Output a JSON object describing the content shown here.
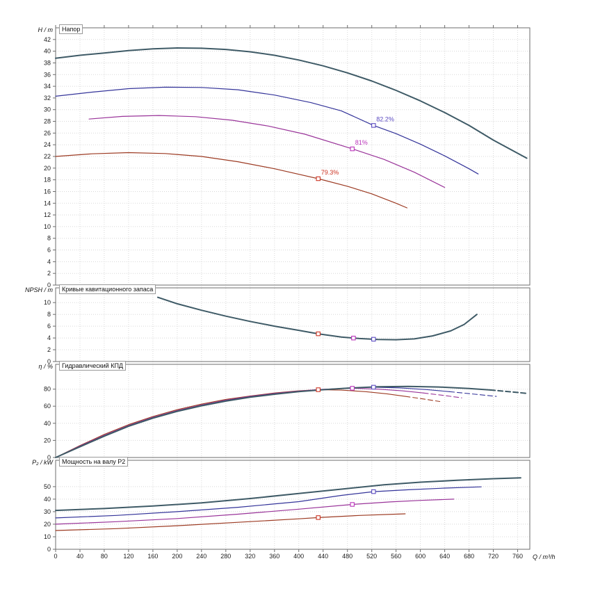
{
  "window": {
    "background": "#ffffff"
  },
  "axis_x": {
    "label": "Q / m³/h",
    "min": 0,
    "max": 780,
    "tick_step": 40,
    "tick_max": 760
  },
  "colors": {
    "grid": "#d8d8d8",
    "frame": "#6e6e6e",
    "tick_text": "#1a1a1a",
    "full": "#3e5a66",
    "trim1": "#333399",
    "trim2": "#993399",
    "trim3": "#9c3a22",
    "duty1": "#5a49c0",
    "duty2": "#bb33bb",
    "duty3": "#cc3322"
  },
  "chart_data": [
    {
      "type": "line",
      "title": "Напор",
      "ylabel": "H / m",
      "xlabel": "Q / m³/h",
      "ylim": [
        0,
        44
      ],
      "yticks": [
        0,
        2,
        4,
        6,
        8,
        10,
        12,
        14,
        16,
        18,
        20,
        22,
        24,
        26,
        28,
        30,
        32,
        34,
        36,
        38,
        40,
        42
      ],
      "series": [
        {
          "name": "head-full",
          "color": "full",
          "width": 2,
          "points": [
            [
              0,
              38.8
            ],
            [
              40,
              39.3
            ],
            [
              80,
              39.7
            ],
            [
              120,
              40.1
            ],
            [
              160,
              40.4
            ],
            [
              200,
              40.55
            ],
            [
              240,
              40.5
            ],
            [
              280,
              40.3
            ],
            [
              320,
              39.9
            ],
            [
              360,
              39.3
            ],
            [
              400,
              38.5
            ],
            [
              440,
              37.5
            ],
            [
              480,
              36.3
            ],
            [
              520,
              34.9
            ],
            [
              560,
              33.3
            ],
            [
              600,
              31.5
            ],
            [
              640,
              29.5
            ],
            [
              680,
              27.3
            ],
            [
              720,
              24.8
            ],
            [
              775,
              21.7
            ]
          ]
        },
        {
          "name": "head-trim1",
          "color": "trim1",
          "width": 1.2,
          "points": [
            [
              0,
              32.3
            ],
            [
              60,
              33.0
            ],
            [
              120,
              33.6
            ],
            [
              180,
              33.85
            ],
            [
              240,
              33.8
            ],
            [
              300,
              33.4
            ],
            [
              360,
              32.5
            ],
            [
              420,
              31.2
            ],
            [
              470,
              29.8
            ],
            [
              523,
              27.3
            ],
            [
              560,
              25.9
            ],
            [
              600,
              24.1
            ],
            [
              640,
              22.1
            ],
            [
              680,
              19.9
            ],
            [
              695,
              19.0
            ]
          ]
        },
        {
          "name": "head-trim2",
          "color": "trim2",
          "width": 1.2,
          "points": [
            [
              55,
              28.4
            ],
            [
              110,
              28.85
            ],
            [
              170,
              29.0
            ],
            [
              230,
              28.8
            ],
            [
              290,
              28.2
            ],
            [
              350,
              27.2
            ],
            [
              410,
              25.8
            ],
            [
              488,
              23.3
            ],
            [
              540,
              21.5
            ],
            [
              590,
              19.3
            ],
            [
              640,
              16.7
            ]
          ]
        },
        {
          "name": "head-trim3",
          "color": "trim3",
          "width": 1.2,
          "points": [
            [
              0,
              22.0
            ],
            [
              60,
              22.45
            ],
            [
              120,
              22.65
            ],
            [
              180,
              22.5
            ],
            [
              240,
              22.0
            ],
            [
              300,
              21.1
            ],
            [
              360,
              19.9
            ],
            [
              432,
              18.2
            ],
            [
              480,
              16.9
            ],
            [
              520,
              15.6
            ],
            [
              560,
              14.0
            ],
            [
              578,
              13.2
            ]
          ]
        }
      ],
      "markers": [
        {
          "x": 432,
          "y": 18.2,
          "color": "duty3",
          "label": "79.3%"
        },
        {
          "x": 488,
          "y": 23.3,
          "color": "duty2",
          "label": "81%"
        },
        {
          "x": 523,
          "y": 27.3,
          "color": "duty1",
          "label": "82.2%"
        }
      ]
    },
    {
      "type": "line",
      "title": "Кривые кавитационного запаса",
      "ylabel": "NPSH / m",
      "ylim": [
        0,
        12.5
      ],
      "yticks": [
        0,
        2,
        4,
        6,
        8,
        10
      ],
      "series": [
        {
          "name": "npsh",
          "color": "full",
          "width": 2,
          "points": [
            [
              168,
              10.9
            ],
            [
              200,
              9.8
            ],
            [
              240,
              8.7
            ],
            [
              280,
              7.7
            ],
            [
              320,
              6.8
            ],
            [
              360,
              6.0
            ],
            [
              400,
              5.3
            ],
            [
              432,
              4.7
            ],
            [
              470,
              4.15
            ],
            [
              500,
              3.9
            ],
            [
              530,
              3.75
            ],
            [
              560,
              3.7
            ],
            [
              590,
              3.85
            ],
            [
              620,
              4.35
            ],
            [
              650,
              5.2
            ],
            [
              672,
              6.3
            ],
            [
              693,
              8.0
            ]
          ]
        }
      ],
      "markers": [
        {
          "x": 432,
          "y": 4.7,
          "color": "duty3"
        },
        {
          "x": 490,
          "y": 3.98,
          "color": "duty2"
        },
        {
          "x": 523,
          "y": 3.78,
          "color": "duty1"
        }
      ]
    },
    {
      "type": "line",
      "title": "Гидравлический КПД",
      "ylabel": "η / %",
      "ylim": [
        0,
        109
      ],
      "yticks": [
        0,
        20,
        40,
        60,
        80
      ],
      "series": [
        {
          "name": "eff-trim3",
          "color": "trim3",
          "width": 1.1,
          "points": [
            [
              0,
              0
            ],
            [
              40,
              14
            ],
            [
              80,
              27
            ],
            [
              120,
              38.5
            ],
            [
              160,
              48
            ],
            [
              200,
              56
            ],
            [
              240,
              62.5
            ],
            [
              280,
              68
            ],
            [
              320,
              72
            ],
            [
              360,
              75.5
            ],
            [
              400,
              78
            ],
            [
              432,
              79.3
            ],
            [
              470,
              78.8
            ],
            [
              510,
              77
            ],
            [
              545,
              74.5
            ],
            [
              575,
              71.5
            ]
          ]
        },
        {
          "name": "eff-trim3-ext",
          "color": "trim3",
          "width": 1.1,
          "dash": true,
          "points": [
            [
              575,
              71.5
            ],
            [
              605,
              68.5
            ],
            [
              632,
              65.5
            ]
          ]
        },
        {
          "name": "eff-trim2",
          "color": "trim2",
          "width": 1.1,
          "points": [
            [
              0,
              0
            ],
            [
              40,
              13.5
            ],
            [
              80,
              26
            ],
            [
              120,
              37.5
            ],
            [
              160,
              47
            ],
            [
              200,
              55
            ],
            [
              240,
              61.5
            ],
            [
              280,
              67
            ],
            [
              320,
              71.5
            ],
            [
              360,
              75
            ],
            [
              400,
              77.8
            ],
            [
              440,
              79.9
            ],
            [
              488,
              81
            ],
            [
              530,
              80
            ],
            [
              570,
              78
            ],
            [
              605,
              75.5
            ]
          ]
        },
        {
          "name": "eff-trim2-ext",
          "color": "trim2",
          "width": 1.1,
          "dash": true,
          "points": [
            [
              605,
              75.5
            ],
            [
              640,
              72.5
            ],
            [
              668,
              69.8
            ]
          ]
        },
        {
          "name": "eff-trim1",
          "color": "trim1",
          "width": 1.1,
          "points": [
            [
              0,
              0
            ],
            [
              40,
              13
            ],
            [
              80,
              25.5
            ],
            [
              120,
              37
            ],
            [
              160,
              46.5
            ],
            [
              200,
              54.5
            ],
            [
              240,
              61
            ],
            [
              280,
              66.5
            ],
            [
              320,
              71
            ],
            [
              360,
              74.5
            ],
            [
              400,
              77.3
            ],
            [
              440,
              79.5
            ],
            [
              480,
              81.3
            ],
            [
              523,
              82.2
            ],
            [
              565,
              81.5
            ],
            [
              610,
              79.5
            ],
            [
              648,
              77
            ]
          ]
        },
        {
          "name": "eff-trim1-ext",
          "color": "trim1",
          "width": 1.1,
          "dash": true,
          "points": [
            [
              648,
              77
            ],
            [
              690,
              74
            ],
            [
              725,
              71.5
            ]
          ]
        },
        {
          "name": "eff-full",
          "color": "full",
          "width": 2,
          "points": [
            [
              0,
              0
            ],
            [
              40,
              12.5
            ],
            [
              80,
              25
            ],
            [
              120,
              36.5
            ],
            [
              160,
              46
            ],
            [
              200,
              54
            ],
            [
              240,
              60.5
            ],
            [
              280,
              66
            ],
            [
              320,
              70.5
            ],
            [
              360,
              74
            ],
            [
              400,
              77
            ],
            [
              440,
              79.3
            ],
            [
              480,
              81.2
            ],
            [
              530,
              82.7
            ],
            [
              580,
              83.2
            ],
            [
              630,
              82.5
            ],
            [
              680,
              80.8
            ],
            [
              715,
              79
            ]
          ]
        },
        {
          "name": "eff-full-ext",
          "color": "full",
          "width": 2,
          "dash": true,
          "points": [
            [
              715,
              79
            ],
            [
              750,
              76.8
            ],
            [
              775,
              75
            ]
          ]
        }
      ],
      "markers": [
        {
          "x": 432,
          "y": 79.3,
          "color": "duty3"
        },
        {
          "x": 488,
          "y": 81,
          "color": "duty2"
        },
        {
          "x": 523,
          "y": 82.2,
          "color": "duty1"
        }
      ]
    },
    {
      "type": "line",
      "title": "Мощность на валу P2",
      "ylabel": "P₂ / kW",
      "ylim": [
        0,
        71
      ],
      "yticks": [
        0,
        10,
        20,
        30,
        40,
        50
      ],
      "series": [
        {
          "name": "p2-full",
          "color": "full",
          "width": 2,
          "points": [
            [
              0,
              31
            ],
            [
              80,
              32.5
            ],
            [
              160,
              34.5
            ],
            [
              240,
              37
            ],
            [
              320,
              40.5
            ],
            [
              400,
              44.5
            ],
            [
              480,
              48.5
            ],
            [
              540,
              51.5
            ],
            [
              600,
              53.5
            ],
            [
              660,
              55
            ],
            [
              720,
              56.3
            ],
            [
              765,
              57
            ]
          ]
        },
        {
          "name": "p2-trim1",
          "color": "trim1",
          "width": 1.2,
          "points": [
            [
              0,
              25
            ],
            [
              100,
              27
            ],
            [
              200,
              30
            ],
            [
              300,
              33.5
            ],
            [
              400,
              38
            ],
            [
              470,
              43
            ],
            [
              523,
              46
            ],
            [
              580,
              47.5
            ],
            [
              640,
              48.8
            ],
            [
              700,
              49.8
            ]
          ]
        },
        {
          "name": "p2-trim2",
          "color": "trim2",
          "width": 1.2,
          "points": [
            [
              0,
              20
            ],
            [
              100,
              22
            ],
            [
              200,
              24.5
            ],
            [
              300,
              28
            ],
            [
              400,
              32
            ],
            [
              488,
              35.8
            ],
            [
              550,
              37.8
            ],
            [
              600,
              39
            ],
            [
              655,
              40
            ]
          ]
        },
        {
          "name": "p2-trim3",
          "color": "trim3",
          "width": 1.2,
          "points": [
            [
              0,
              15
            ],
            [
              100,
              16.5
            ],
            [
              200,
              18.8
            ],
            [
              300,
              21.5
            ],
            [
              400,
              24.3
            ],
            [
              432,
              25.3
            ],
            [
              500,
              27
            ],
            [
              575,
              28.3
            ]
          ]
        }
      ],
      "markers": [
        {
          "x": 432,
          "y": 25.3,
          "color": "duty3"
        },
        {
          "x": 488,
          "y": 35.8,
          "color": "duty2"
        },
        {
          "x": 523,
          "y": 46,
          "color": "duty1"
        }
      ]
    }
  ]
}
